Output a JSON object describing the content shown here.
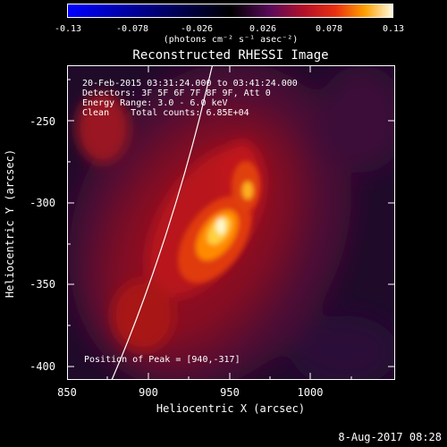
{
  "colorbar": {
    "ticks": [
      "-0.13",
      "-0.078",
      "-0.026",
      "0.026",
      "0.078",
      "0.13"
    ],
    "units": "(photons cm⁻² s⁻¹ asec⁻²)"
  },
  "plot": {
    "title": "Reconstructed RHESSI Image",
    "annotations": {
      "time_range": "20-Feb-2015 03:31:24.000 to 03:41:24.000",
      "detectors": "Detectors: 3F 5F 6F 7F 8F 9F, Att 0",
      "energy": "Energy Range: 3.0 - 6.0 keV",
      "method": "Clean    Total counts: 6.85E+04",
      "peak": "Position of Peak = [940,-317]"
    },
    "x_axis": {
      "label": "Heliocentric X (arcsec)",
      "ticks": [
        "850",
        "900",
        "950",
        "1000"
      ],
      "range": [
        850,
        1052
      ]
    },
    "y_axis": {
      "label": "Heliocentric Y (arcsec)",
      "ticks": [
        "-250",
        "-300",
        "-350",
        "-400"
      ],
      "range": [
        -406,
        -213
      ]
    }
  },
  "footer": {
    "date": "8-Aug-2017 08:28"
  }
}
